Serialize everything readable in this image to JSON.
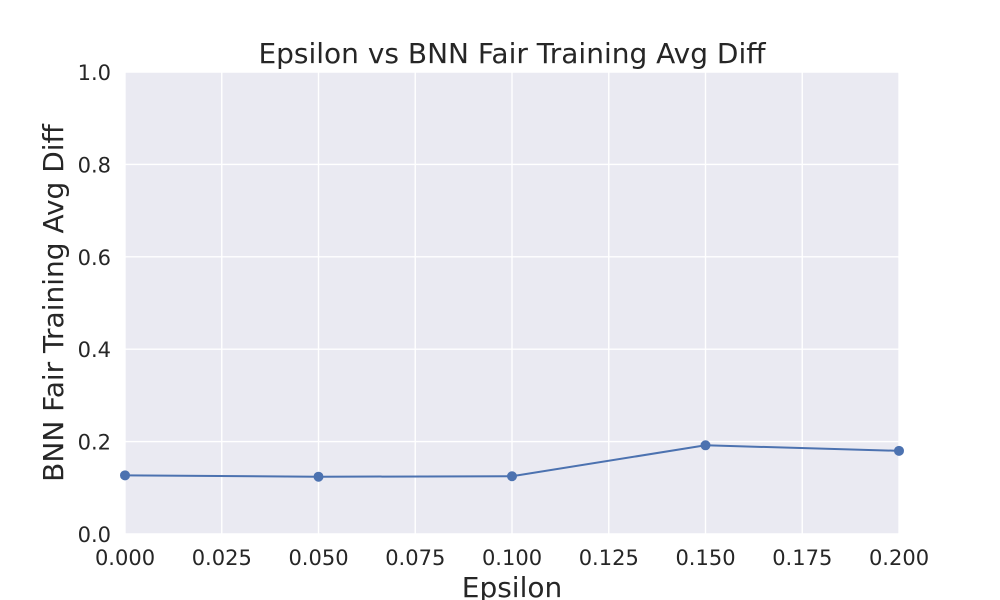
{
  "chart_data": {
    "type": "line",
    "title": "Epsilon vs BNN Fair Training Avg Diff",
    "xlabel": "Epsilon",
    "ylabel": "BNN Fair Training Avg Diff",
    "xlim": [
      0.0,
      0.2
    ],
    "ylim": [
      0.0,
      1.0
    ],
    "x_ticks": [
      "0.000",
      "0.025",
      "0.050",
      "0.075",
      "0.100",
      "0.125",
      "0.150",
      "0.175",
      "0.200"
    ],
    "y_ticks": [
      "0.0",
      "0.2",
      "0.4",
      "0.6",
      "0.8",
      "1.0"
    ],
    "grid": true,
    "series": [
      {
        "x": [
          0.0,
          0.05,
          0.1,
          0.15,
          0.2
        ],
        "y": [
          0.127,
          0.124,
          0.125,
          0.192,
          0.18
        ],
        "color": "#4c72b0",
        "marker": "circle"
      }
    ],
    "colors": {
      "plot_background": "#eaeaf2",
      "grid": "#ffffff",
      "text": "#262626"
    }
  }
}
